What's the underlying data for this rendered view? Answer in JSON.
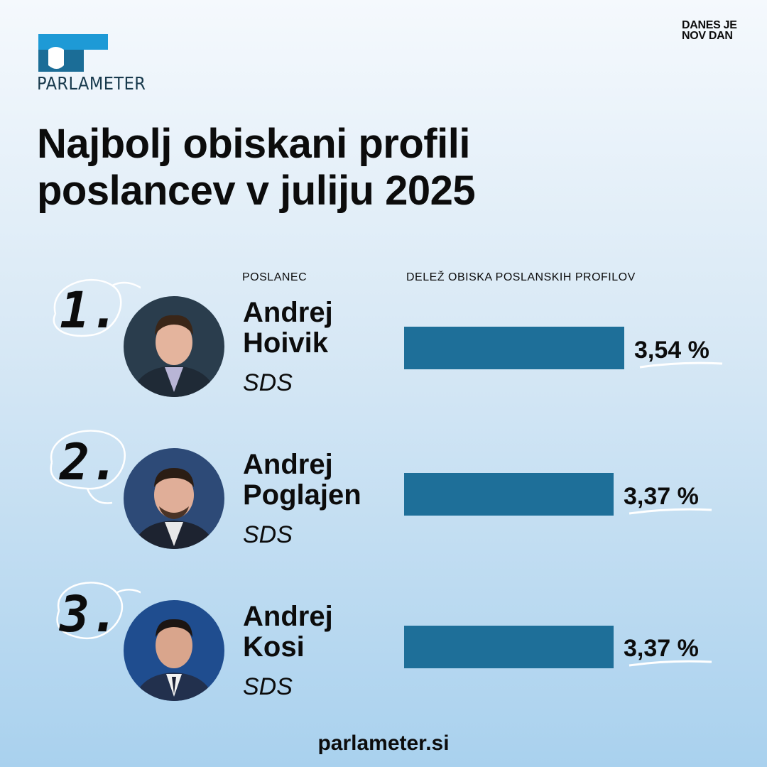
{
  "brand": {
    "logo_text": "PARLAMETER",
    "corner_line1": "DANES JE",
    "corner_line2": "NOV DAN"
  },
  "title": {
    "line1": "Najbolj obiskani profili",
    "line2": "poslancev v juliju 2025"
  },
  "columns": {
    "mp": "POSLANEC",
    "share": "DELEŽ OBISKA POSLANSKIH PROFILOV"
  },
  "rows": [
    {
      "rank": "1.",
      "first_name": "Andrej",
      "last_name": "Hoivik",
      "party": "SDS",
      "value_label": "3,54 %"
    },
    {
      "rank": "2.",
      "first_name": "Andrej",
      "last_name": "Poglajen",
      "party": "SDS",
      "value_label": "3,37 %"
    },
    {
      "rank": "3.",
      "first_name": "Andrej",
      "last_name": "Kosi",
      "party": "SDS",
      "value_label": "3,37 %"
    }
  ],
  "chart_data": {
    "type": "bar",
    "categories": [
      "Andrej Hoivik",
      "Andrej Poglajen",
      "Andrej Kosi"
    ],
    "values": [
      3.54,
      3.37,
      3.37
    ],
    "title": "Najbolj obiskani profili poslancev v juliju 2025",
    "xlabel": "POSLANEC",
    "ylabel": "DELEŽ OBISKA POSLANSKIH PROFILOV",
    "unit": "%"
  },
  "colors": {
    "bar": "#1e6f99",
    "logo_light": "#1e9ad6",
    "logo_dark": "#17394c"
  },
  "footer": "parlameter.si"
}
